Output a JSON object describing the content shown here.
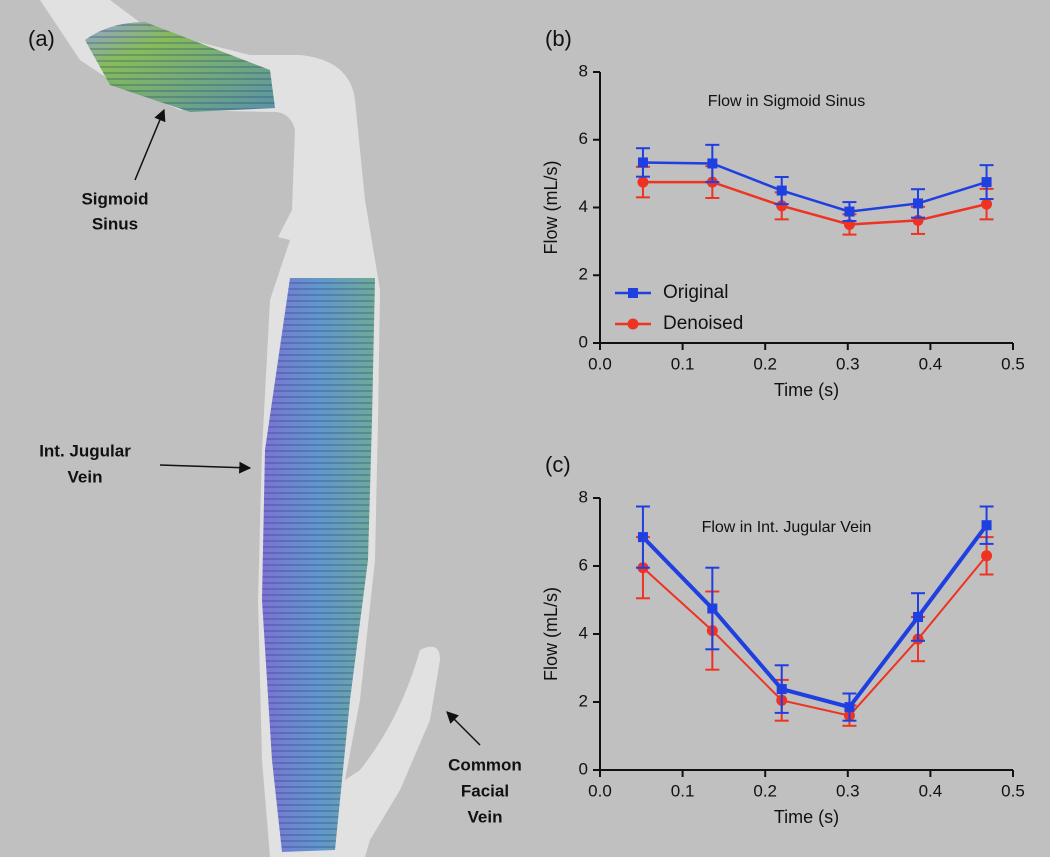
{
  "panel_a": {
    "label": "(a)",
    "annotations": [
      {
        "lines": [
          "Sigmoid",
          "Sinus"
        ]
      },
      {
        "lines": [
          "Int. Jugular",
          "Vein"
        ]
      },
      {
        "lines": [
          "Common",
          "Facial",
          "Vein"
        ]
      }
    ]
  },
  "chart_data": [
    {
      "type": "line",
      "panel_label": "(b)",
      "title": "Flow in Sigmoid Sinus",
      "xlabel": "Time (s)",
      "ylabel": "Flow (mL/s)",
      "x": [
        0.052,
        0.136,
        0.22,
        0.302,
        0.385,
        0.468
      ],
      "xlim": [
        0,
        0.5
      ],
      "xticks": [
        {
          "value": 0,
          "label": "0.0"
        },
        0.1,
        0.2,
        0.3,
        0.4,
        0.5
      ],
      "ylim": [
        0,
        8
      ],
      "yticks": [
        0,
        2,
        4,
        6,
        8
      ],
      "legend": "lower left",
      "series": [
        {
          "name": "Original",
          "color": "#1f3fe0",
          "marker": "square",
          "values": [
            5.33,
            5.3,
            4.5,
            3.88,
            4.12,
            4.75
          ],
          "errors": [
            0.42,
            0.55,
            0.4,
            0.28,
            0.42,
            0.5
          ]
        },
        {
          "name": "Denoised",
          "color": "#ee3322",
          "marker": "circle",
          "values": [
            4.75,
            4.75,
            4.05,
            3.5,
            3.62,
            4.1
          ],
          "errors": [
            0.45,
            0.47,
            0.4,
            0.3,
            0.4,
            0.45
          ]
        }
      ]
    },
    {
      "type": "line",
      "panel_label": "(c)",
      "title": "Flow in Int. Jugular Vein",
      "xlabel": "Time (s)",
      "ylabel": "Flow (mL/s)",
      "x": [
        0.052,
        0.136,
        0.22,
        0.302,
        0.385,
        0.468
      ],
      "xlim": [
        0,
        0.5
      ],
      "xticks": [
        {
          "value": 0,
          "label": "0.0"
        },
        0.1,
        0.2,
        0.3,
        0.4,
        0.5
      ],
      "ylim": [
        0,
        8
      ],
      "yticks": [
        0,
        2,
        4,
        6,
        8
      ],
      "series": [
        {
          "color": "#1f3fe0",
          "marker": "square",
          "values": [
            6.85,
            4.75,
            2.38,
            1.85,
            4.5,
            7.2
          ],
          "errors": [
            0.9,
            1.2,
            0.7,
            0.4,
            0.7,
            0.55
          ]
        },
        {
          "color": "#ee3322",
          "marker": "circle",
          "values": [
            5.95,
            4.1,
            2.05,
            1.6,
            3.85,
            6.3
          ],
          "errors": [
            0.9,
            1.15,
            0.6,
            0.3,
            0.65,
            0.55
          ]
        }
      ]
    }
  ]
}
